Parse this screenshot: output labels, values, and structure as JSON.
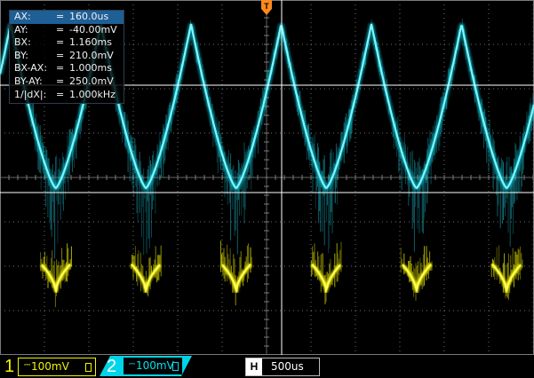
{
  "cursor_readout": [
    {
      "label": "AX:",
      "value": "160.0us"
    },
    {
      "label": "AY:",
      "value": "-40.00mV"
    },
    {
      "label": "BX:",
      "value": "1.160ms"
    },
    {
      "label": "BY:",
      "value": "210.0mV"
    },
    {
      "label": "BX-AX:",
      "value": "1.000ms"
    },
    {
      "label": "BY-AY:",
      "value": "250.0mV"
    },
    {
      "label": "1/|dX|:",
      "value": "1.000kHz"
    }
  ],
  "trigger_marker": "T",
  "channel1": {
    "number": "1",
    "scale": "100mV",
    "coupling_icon": "DC",
    "color": "#f2f200"
  },
  "channel2": {
    "number": "2",
    "scale": "100mV",
    "coupling_icon": "DC",
    "color": "#00e0f0"
  },
  "timebase": {
    "label": "H",
    "value": "500us"
  },
  "colors": {
    "background": "#000000",
    "grid": "#7a7a7a",
    "cursor_line": "#ffffff",
    "accent": "#1e5f96"
  },
  "waveform": {
    "frequency": "1.000kHz",
    "shape": "triangle",
    "cycles_visible": 6
  }
}
